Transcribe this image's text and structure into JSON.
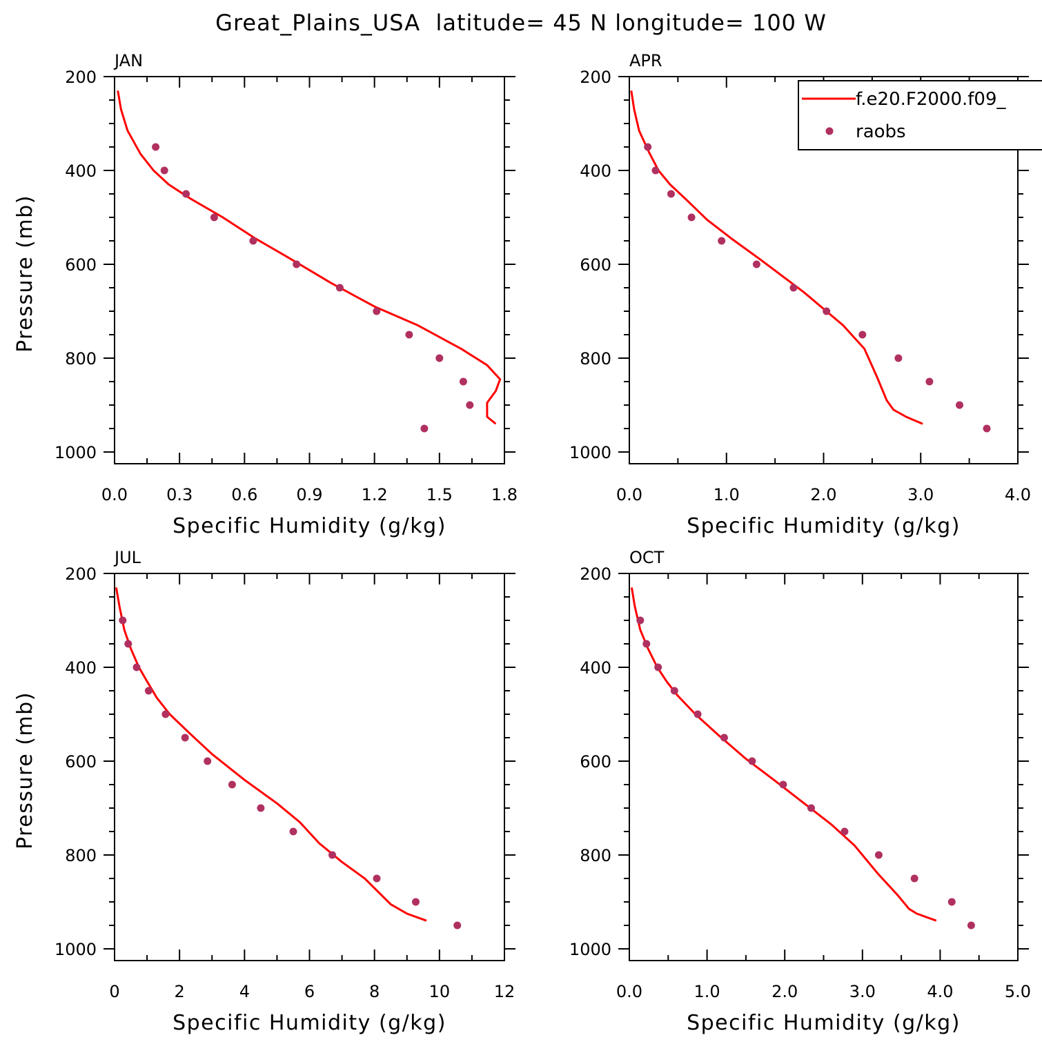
{
  "figure_title": "Great_Plains_USA  latitude= 45 N longitude= 100 W",
  "legend": {
    "model_label": "f.e20.F2000.f09_",
    "obs_label": "raobs"
  },
  "colors": {
    "model_line": "#ff0000",
    "obs_marker": "#b03060",
    "axes": "#000000",
    "background": "#ffffff"
  },
  "chart_data": [
    {
      "type": "line",
      "panel": "JAN",
      "title": "JAN",
      "xlabel": "Specific Humidity (g/kg)",
      "ylabel": "Pressure (mb)",
      "xlim": [
        0,
        1.8
      ],
      "ylim": [
        1025,
        200
      ],
      "x_ticks": [
        0,
        0.3,
        0.6,
        0.9,
        1.2,
        1.5,
        1.8
      ],
      "x_tick_labels": [
        "0.0",
        "0.3",
        "0.6",
        "0.9",
        "1.2",
        "1.5",
        "1.8"
      ],
      "y_ticks": [
        200,
        400,
        600,
        800,
        1000
      ],
      "y_tick_labels": [
        "200",
        "400",
        "600",
        "800",
        "1000"
      ],
      "series": [
        {
          "name": "f.e20.F2000.f09_",
          "style": "line",
          "x": [
            0.015,
            0.03,
            0.06,
            0.12,
            0.18,
            0.25,
            0.35,
            0.5,
            0.65,
            0.8,
            1.0,
            1.2,
            1.4,
            1.6,
            1.72,
            1.78,
            1.76,
            1.72,
            1.72,
            1.76
          ],
          "y": [
            230,
            270,
            315,
            365,
            400,
            430,
            460,
            500,
            545,
            585,
            640,
            690,
            730,
            780,
            815,
            845,
            870,
            895,
            925,
            940
          ]
        },
        {
          "name": "raobs",
          "style": "scatter",
          "x": [
            0.19,
            0.23,
            0.33,
            0.46,
            0.64,
            0.84,
            1.04,
            1.21,
            1.36,
            1.5,
            1.61,
            1.64,
            1.43
          ],
          "y": [
            350,
            400,
            450,
            500,
            550,
            600,
            650,
            700,
            750,
            800,
            850,
            900,
            950
          ]
        }
      ]
    },
    {
      "type": "line",
      "panel": "APR",
      "title": "APR",
      "xlabel": "Specific Humidity (g/kg)",
      "ylabel": "",
      "xlim": [
        0,
        4.0
      ],
      "ylim": [
        1025,
        200
      ],
      "x_ticks": [
        0,
        1,
        2,
        3,
        4
      ],
      "x_tick_labels": [
        "0.0",
        "1.0",
        "2.0",
        "3.0",
        "4.0"
      ],
      "y_ticks": [
        200,
        400,
        600,
        800,
        1000
      ],
      "y_tick_labels": [
        "200",
        "400",
        "600",
        "800",
        "1000"
      ],
      "series": [
        {
          "name": "f.e20.F2000.f09_",
          "style": "line",
          "x": [
            0.02,
            0.05,
            0.1,
            0.2,
            0.3,
            0.42,
            0.6,
            0.8,
            1.05,
            1.35,
            1.8,
            2.2,
            2.42,
            2.55,
            2.65,
            2.72,
            2.85,
            3.02
          ],
          "y": [
            230,
            270,
            315,
            360,
            400,
            430,
            465,
            505,
            545,
            590,
            660,
            730,
            780,
            840,
            890,
            910,
            925,
            940
          ]
        },
        {
          "name": "raobs",
          "style": "scatter",
          "x": [
            0.19,
            0.27,
            0.43,
            0.64,
            0.95,
            1.31,
            1.69,
            2.03,
            2.4,
            2.77,
            3.09,
            3.4,
            3.68
          ],
          "y": [
            350,
            400,
            450,
            500,
            550,
            600,
            650,
            700,
            750,
            800,
            850,
            900,
            950
          ]
        }
      ]
    },
    {
      "type": "line",
      "panel": "JUL",
      "title": "JUL",
      "xlabel": "Specific Humidity (g/kg)",
      "ylabel": "Pressure (mb)",
      "xlim": [
        0,
        12
      ],
      "ylim": [
        1025,
        200
      ],
      "x_ticks": [
        0,
        2,
        4,
        6,
        8,
        10,
        12
      ],
      "x_tick_labels": [
        "0",
        "2",
        "4",
        "6",
        "8",
        "10",
        "12"
      ],
      "y_ticks": [
        200,
        400,
        600,
        800,
        1000
      ],
      "y_tick_labels": [
        "200",
        "400",
        "600",
        "800",
        "1000"
      ],
      "series": [
        {
          "name": "f.e20.F2000.f09_",
          "style": "line",
          "x": [
            0.05,
            0.15,
            0.3,
            0.5,
            0.75,
            1.0,
            1.3,
            1.7,
            2.3,
            3.0,
            4.0,
            5.0,
            5.7,
            6.3,
            7.0,
            7.7,
            8.5,
            9.0,
            9.6
          ],
          "y": [
            230,
            270,
            320,
            360,
            400,
            430,
            465,
            500,
            540,
            585,
            640,
            690,
            730,
            775,
            815,
            850,
            905,
            925,
            940
          ]
        },
        {
          "name": "raobs",
          "style": "scatter",
          "x": [
            0.25,
            0.42,
            0.68,
            1.05,
            1.57,
            2.17,
            2.86,
            3.62,
            4.5,
            5.5,
            6.7,
            8.07,
            9.27,
            10.55
          ],
          "y": [
            300,
            350,
            400,
            450,
            500,
            550,
            600,
            650,
            700,
            750,
            800,
            850,
            900,
            950
          ]
        }
      ]
    },
    {
      "type": "line",
      "panel": "OCT",
      "title": "OCT",
      "xlabel": "Specific Humidity (g/kg)",
      "ylabel": "",
      "xlim": [
        0,
        5.0
      ],
      "ylim": [
        1025,
        200
      ],
      "x_ticks": [
        0,
        1,
        2,
        3,
        4,
        5
      ],
      "x_tick_labels": [
        "0.0",
        "1.0",
        "2.0",
        "3.0",
        "4.0",
        "5.0"
      ],
      "y_ticks": [
        200,
        400,
        600,
        800,
        1000
      ],
      "y_tick_labels": [
        "200",
        "400",
        "600",
        "800",
        "1000"
      ],
      "series": [
        {
          "name": "f.e20.F2000.f09_",
          "style": "line",
          "x": [
            0.03,
            0.07,
            0.14,
            0.24,
            0.36,
            0.48,
            0.62,
            0.85,
            1.15,
            1.5,
            1.9,
            2.25,
            2.6,
            2.9,
            3.2,
            3.45,
            3.6,
            3.7,
            3.95
          ],
          "y": [
            230,
            270,
            320,
            360,
            400,
            430,
            460,
            500,
            545,
            595,
            645,
            690,
            735,
            780,
            840,
            885,
            915,
            925,
            940
          ]
        },
        {
          "name": "raobs",
          "style": "scatter",
          "x": [
            0.14,
            0.22,
            0.37,
            0.58,
            0.88,
            1.22,
            1.58,
            1.98,
            2.34,
            2.77,
            3.21,
            3.67,
            4.15,
            4.4
          ],
          "y": [
            300,
            350,
            400,
            450,
            500,
            550,
            600,
            650,
            700,
            750,
            800,
            850,
            900,
            950
          ]
        }
      ]
    }
  ]
}
